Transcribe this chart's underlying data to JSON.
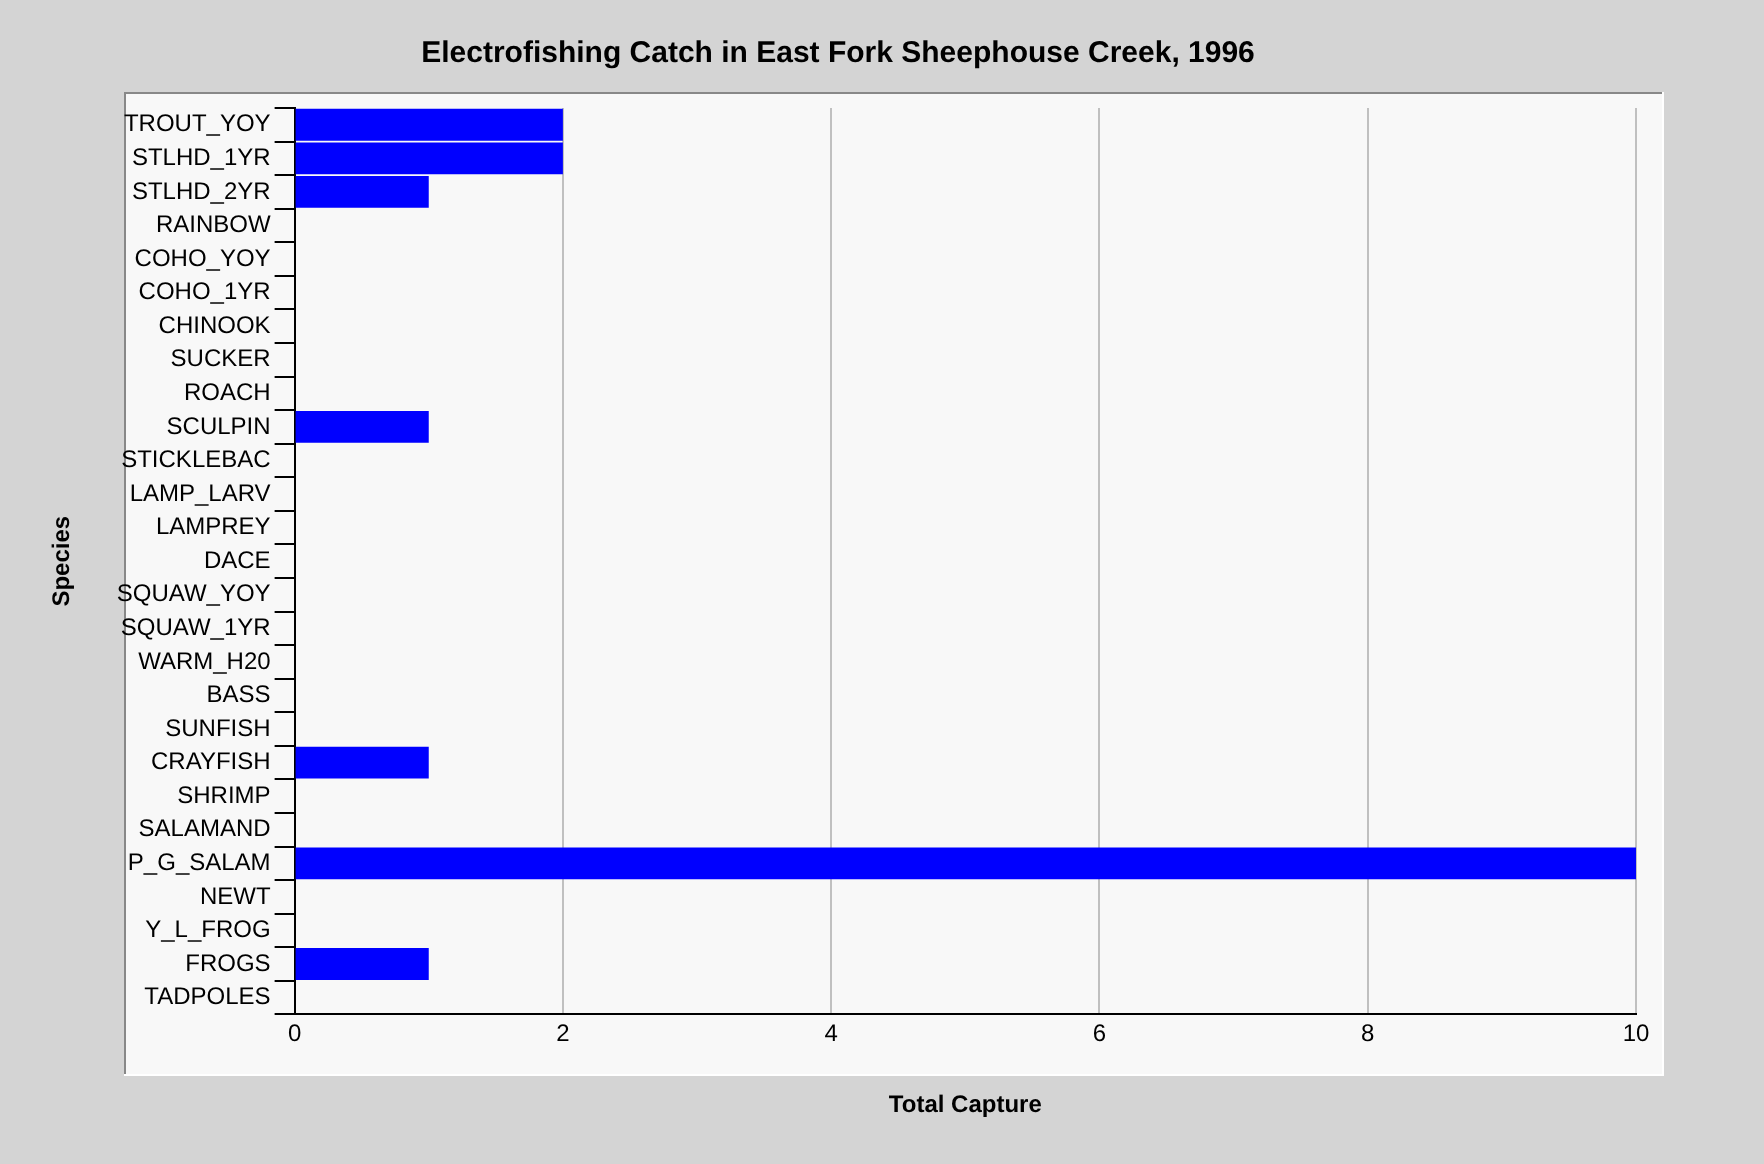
{
  "chart_data": {
    "type": "bar",
    "orientation": "horizontal",
    "title": "Electrofishing Catch in East Fork Sheephouse Creek, 1996",
    "xlabel": "Total Capture",
    "ylabel": "Species",
    "categories": [
      "TROUT_YOY",
      "STLHD_1YR",
      "STLHD_2YR",
      "RAINBOW",
      "COHO_YOY",
      "COHO_1YR",
      "CHINOOK",
      "SUCKER",
      "ROACH",
      "SCULPIN",
      "STICKLEBAC",
      "LAMP_LARV",
      "LAMPREY",
      "DACE",
      "SQUAW_YOY",
      "SQUAW_1YR",
      "WARM_H20",
      "BASS",
      "SUNFISH",
      "CRAYFISH",
      "SHRIMP",
      "SALAMAND",
      "P_G_SALAM",
      "NEWT",
      "Y_L_FROG",
      "FROGS",
      "TADPOLES"
    ],
    "values": [
      2,
      2,
      1,
      0,
      0,
      0,
      0,
      0,
      0,
      1,
      0,
      0,
      0,
      0,
      0,
      0,
      0,
      0,
      0,
      1,
      0,
      0,
      10,
      0,
      0,
      1,
      0
    ],
    "color": "#0000ff",
    "xlim": [
      0,
      10
    ],
    "xticks": [
      0,
      2,
      4,
      6,
      8,
      10
    ],
    "grid": "x",
    "legend": false
  }
}
